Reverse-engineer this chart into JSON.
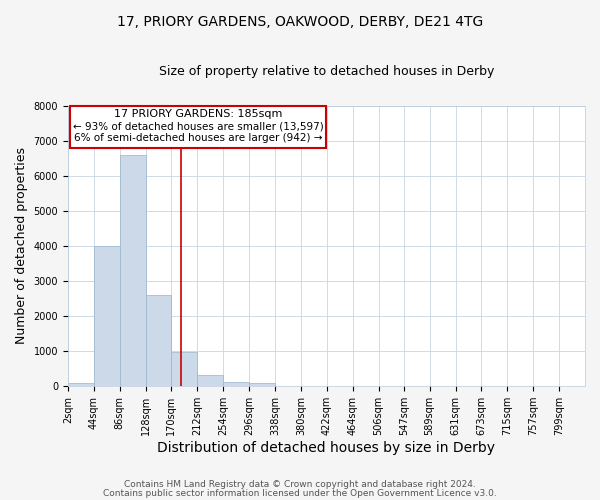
{
  "title1": "17, PRIORY GARDENS, OAKWOOD, DERBY, DE21 4TG",
  "title2": "Size of property relative to detached houses in Derby",
  "xlabel": "Distribution of detached houses by size in Derby",
  "ylabel": "Number of detached properties",
  "footer1": "Contains HM Land Registry data © Crown copyright and database right 2024.",
  "footer2": "Contains public sector information licensed under the Open Government Licence v3.0.",
  "annotation_line1": "17 PRIORY GARDENS: 185sqm",
  "annotation_line2": "← 93% of detached houses are smaller (13,597)",
  "annotation_line3": "6% of semi-detached houses are larger (942) →",
  "bin_edges": [
    2,
    44,
    86,
    128,
    170,
    212,
    254,
    296,
    338,
    380,
    422,
    464,
    506,
    547,
    589,
    631,
    673,
    715,
    757,
    799,
    841
  ],
  "bar_heights": [
    80,
    4000,
    6600,
    2600,
    980,
    330,
    120,
    80,
    10,
    5,
    2,
    1,
    0,
    0,
    0,
    0,
    0,
    0,
    0,
    0
  ],
  "bar_color": "#ccd9e8",
  "bar_edge_color": "#99b3cc",
  "red_line_x": 185,
  "ylim": [
    0,
    8000
  ],
  "yticks": [
    0,
    1000,
    2000,
    3000,
    4000,
    5000,
    6000,
    7000,
    8000
  ],
  "grid_color": "#c8d4e0",
  "bg_color": "#ffffff",
  "fig_bg_color": "#f5f5f5",
  "annotation_box_color": "#cc0000",
  "title1_fontsize": 10,
  "title2_fontsize": 9,
  "axis_label_fontsize": 9,
  "tick_fontsize": 7,
  "footer_fontsize": 6.5,
  "ann_fontsize": 8
}
